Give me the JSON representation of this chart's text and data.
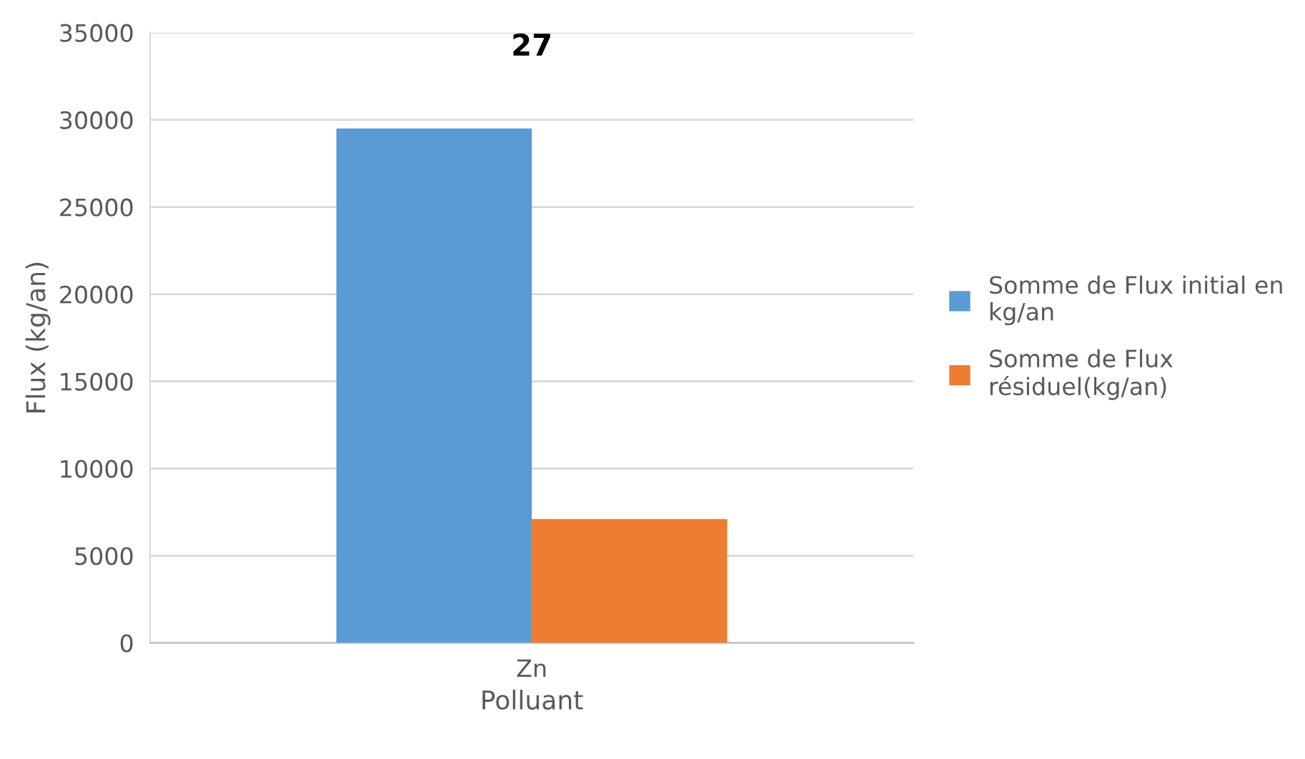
{
  "chart_data": {
    "type": "bar",
    "title": "27",
    "xlabel": "Polluant",
    "ylabel": "Flux (kg/an)",
    "categories": [
      "Zn"
    ],
    "series": [
      {
        "name": "Somme de Flux initial en kg/an",
        "color": "#5b9bd5",
        "values": [
          29500
        ]
      },
      {
        "name": "Somme de Flux résiduel(kg/an)",
        "color": "#ed7d31",
        "values": [
          7100
        ]
      }
    ],
    "ylim": [
      0,
      35000
    ],
    "yticks": [
      0,
      5000,
      10000,
      15000,
      20000,
      25000,
      30000,
      35000
    ],
    "grid": "y",
    "legend": "right"
  }
}
